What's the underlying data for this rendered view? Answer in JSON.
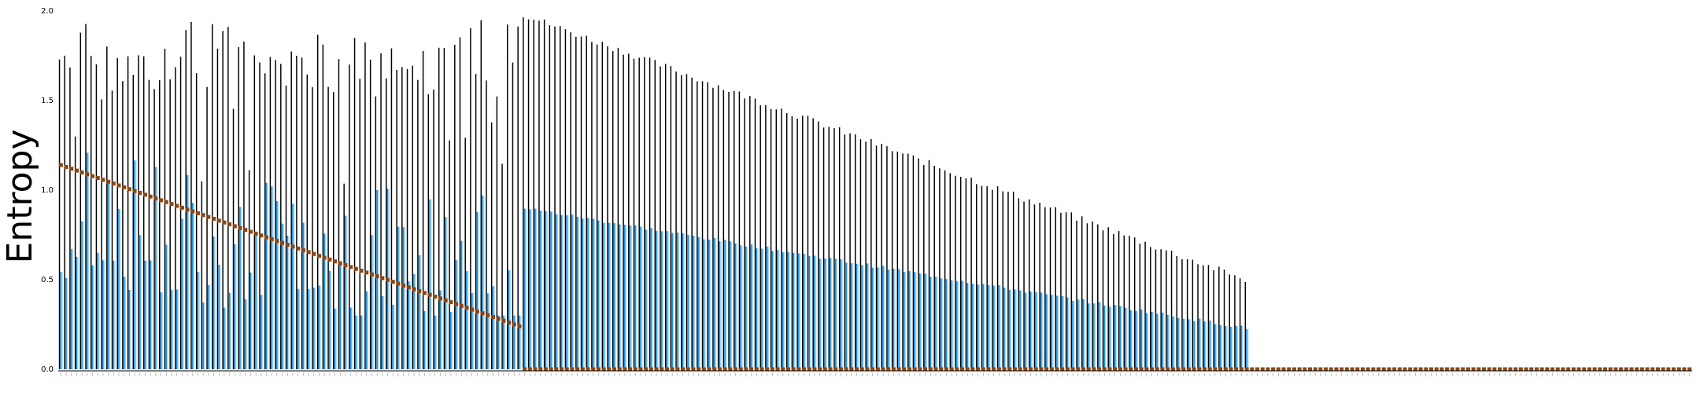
{
  "chart_data": {
    "type": "bar",
    "ylabel": "Entropy",
    "xlabel": "",
    "title": "",
    "ylim": [
      0.0,
      2.0
    ],
    "yticks": [
      "0.0",
      "0.5",
      "1.0",
      "1.5",
      "2.0"
    ],
    "n_categories": 310,
    "x_tick_labels_legible": false,
    "colors": {
      "max_bar": "#000000",
      "mean_bar": "#1f8fe0",
      "mean_bar_light": "#a9d9f7",
      "marker": "#8b4513"
    },
    "groups": [
      {
        "x_start": 0,
        "x_end": 87,
        "max": {
          "start": 1.98,
          "end": 1.95,
          "pattern": "irregular"
        },
        "mean": {
          "start": 1.2,
          "end": 0.5,
          "pattern": "irregular"
        },
        "marker": {
          "start": 1.14,
          "end": 0.24
        }
      },
      {
        "x_start": 88,
        "x_end": 225,
        "max": {
          "start": 1.98,
          "end": 0.5,
          "pattern": "descending"
        },
        "mean": {
          "start": 0.9,
          "end": 0.23,
          "pattern": "descending"
        },
        "marker": {
          "start": 0.0,
          "end": 0.0
        }
      },
      {
        "x_start": 226,
        "x_end": 309,
        "max": null,
        "mean": null,
        "marker": {
          "start": 0.0,
          "end": 0.0
        }
      }
    ]
  }
}
